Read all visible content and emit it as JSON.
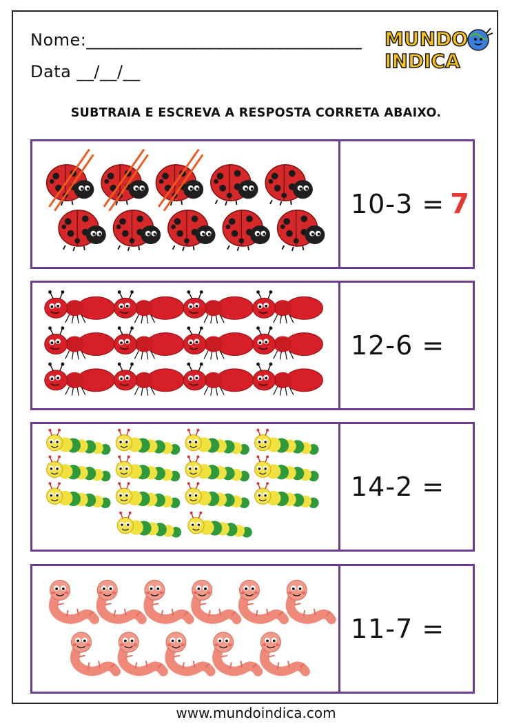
{
  "header": {
    "name_label": "Nome:________________________________",
    "date_label": "Data __/__/__"
  },
  "logo": {
    "line1": "MUNDO",
    "line2": "INDICA",
    "icon": "globe-mascot-icon"
  },
  "instruction": "SUBTRAIA E ESCREVA A RESPOSTA CORRETA ABAIXO.",
  "exercises": [
    {
      "picture": "ladybug-icon",
      "count": 10,
      "crossed": 3,
      "equation": "10-3 =",
      "answer": "7"
    },
    {
      "picture": "ant-icon",
      "count": 12,
      "equation": "12-6 =",
      "answer": ""
    },
    {
      "picture": "caterpillar-icon",
      "count": 14,
      "equation": "14-2 =",
      "answer": ""
    },
    {
      "picture": "worm-icon",
      "count": 11,
      "equation": "11-7 =",
      "answer": ""
    }
  ],
  "footer": "www.mundoindica.com",
  "colors": {
    "box_border": "#6a3d8f",
    "answer": "#e53935"
  }
}
